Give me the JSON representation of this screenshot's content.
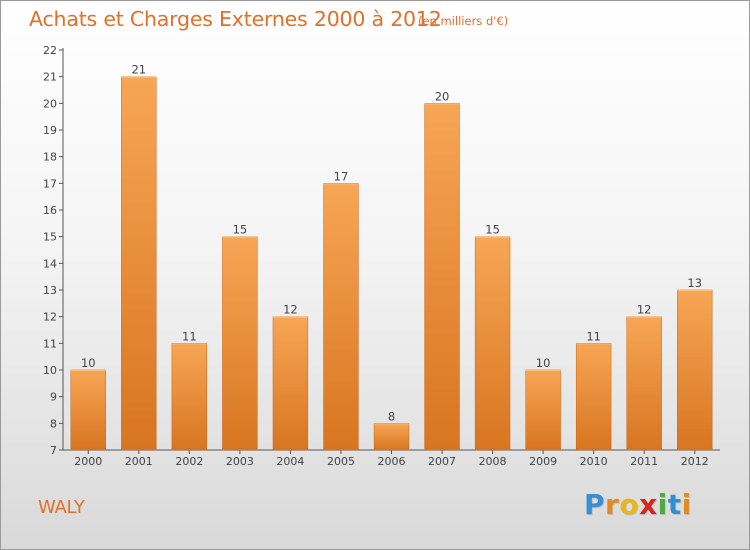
{
  "header": {
    "title": "Achats et Charges Externes 2000 à 2012",
    "unit": "(en milliers d'€)"
  },
  "footer": {
    "commune": "WALY",
    "logo_letters": [
      "P",
      "r",
      "o",
      "x",
      "i",
      "t",
      "i"
    ],
    "logo_colors": [
      "#3a8ed6",
      "#e58a1e",
      "#e8b51a",
      "#d5281c",
      "#4daa3c",
      "#2f8fd1",
      "#e58a1e"
    ]
  },
  "colors": {
    "bar_light": "#f7a655",
    "bar_dark": "#d87520",
    "title": "#e0702a",
    "axis": "#555555"
  },
  "chart_data": {
    "type": "bar",
    "title": "Achats et Charges Externes 2000 à 2012",
    "unit": "(en milliers d'€)",
    "categories": [
      "2000",
      "2001",
      "2002",
      "2003",
      "2004",
      "2005",
      "2006",
      "2007",
      "2008",
      "2009",
      "2010",
      "2011",
      "2012"
    ],
    "values": [
      10,
      21,
      11,
      15,
      12,
      17,
      8,
      20,
      15,
      10,
      11,
      12,
      13
    ],
    "data_labels": [
      "10",
      "21",
      "11",
      "15",
      "12",
      "17",
      "8",
      "20",
      "15",
      "10",
      "11",
      "12",
      "13"
    ],
    "ylim": [
      7,
      22
    ],
    "yticks": [
      "7",
      "8",
      "9",
      "10",
      "11",
      "12",
      "13",
      "14",
      "15",
      "16",
      "17",
      "18",
      "19",
      "20",
      "21",
      "22"
    ],
    "grid": false,
    "legend": "none"
  }
}
